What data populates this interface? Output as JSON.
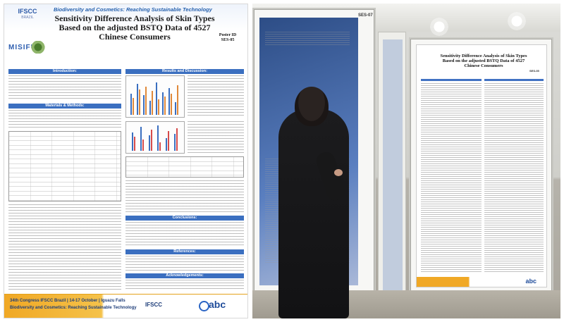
{
  "poster": {
    "theme": "Biodiversity and Cosmetics: Reaching Sustainable Technology",
    "event_logo": "IFSCC",
    "event_logo_sub": "BRAZIL",
    "sponsor": "MISIFU",
    "title_line1": "Sensitivity Difference Analysis of Skin Types",
    "title_line2": "Based on the adjusted BSTQ Data of 4527",
    "title_line3": "Chinese Consumers",
    "poster_id_label": "Poster ID",
    "poster_id": "SES-05",
    "sections": {
      "introduction": "Introduction:",
      "results": "Results and Discussion:",
      "materials": "Materials & Methods:",
      "conclusions": "Conclusions:",
      "references": "References:",
      "acknowledgements": "Acknowledgements:"
    },
    "footer_line1": "34th Congress IFSCC Brazil | 14-17 October | Iguazu Falls",
    "footer_line2": "Biodiversity and Cosmetics: Reaching Sustainable Technology",
    "footer_org": "IFSCC",
    "footer_sponsor": "abc"
  },
  "photo": {
    "board_tag": "SES-07",
    "poster_title_line1": "Sensitivity Difference Analysis of Skin Types",
    "poster_title_line2": "Based on the adjusted BSTQ Data of 4527",
    "poster_title_line3": "Chinese Consumers",
    "poster_id": "SES-05",
    "poster_footer_sponsor": "abc"
  }
}
